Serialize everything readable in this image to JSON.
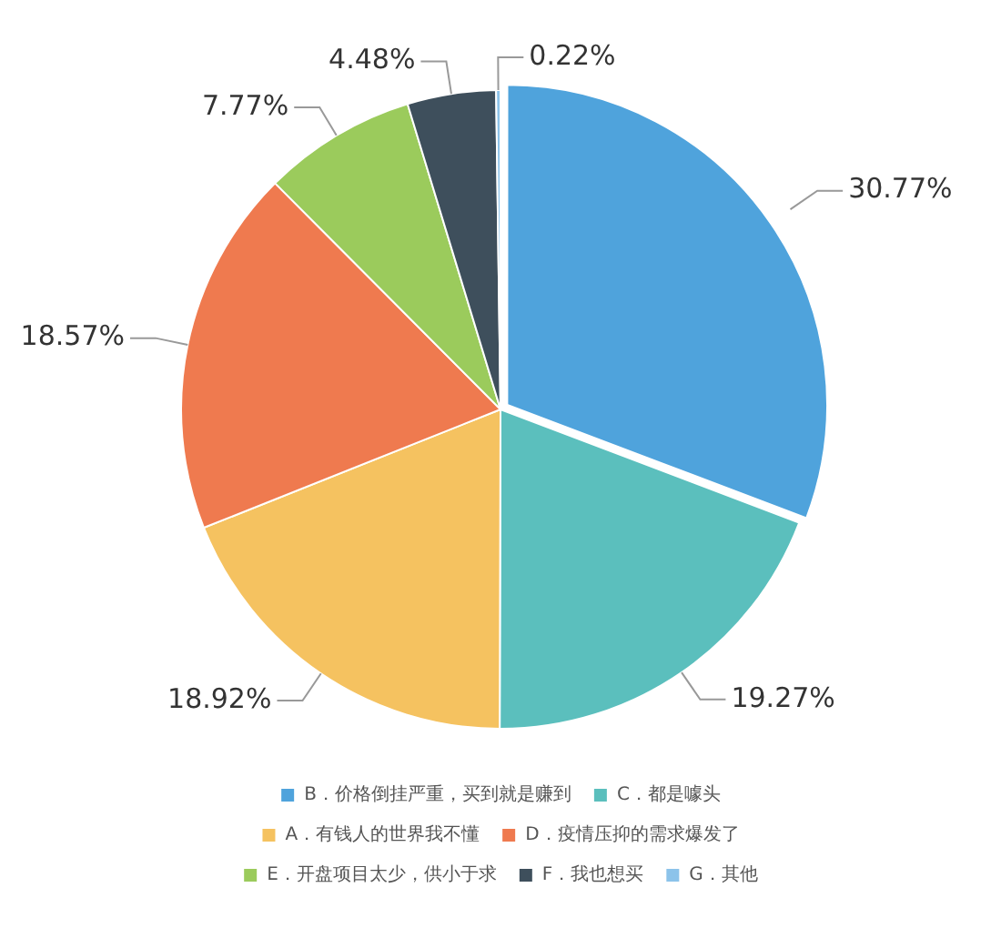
{
  "chart_data": {
    "type": "pie",
    "categories": [
      "B．价格倒挂严重，买到就是赚到",
      "C．都是噱头",
      "A．有钱人的世界我不懂",
      "D．疫情压抑的需求爆发了",
      "E．开盘项目太少，供小于求",
      "F．我也想买",
      "G．其他"
    ],
    "values": [
      30.77,
      19.27,
      18.92,
      18.57,
      7.77,
      4.48,
      0.22
    ],
    "value_labels": [
      "30.77%",
      "19.27%",
      "18.92%",
      "18.57%",
      "7.77%",
      "4.48%",
      "0.22%"
    ],
    "colors": [
      "#4fa3dc",
      "#5bbfbd",
      "#f5c260",
      "#ef7a4f",
      "#9bcb5c",
      "#3e4f5c",
      "#8cc3ea"
    ],
    "legend": "bottom"
  }
}
